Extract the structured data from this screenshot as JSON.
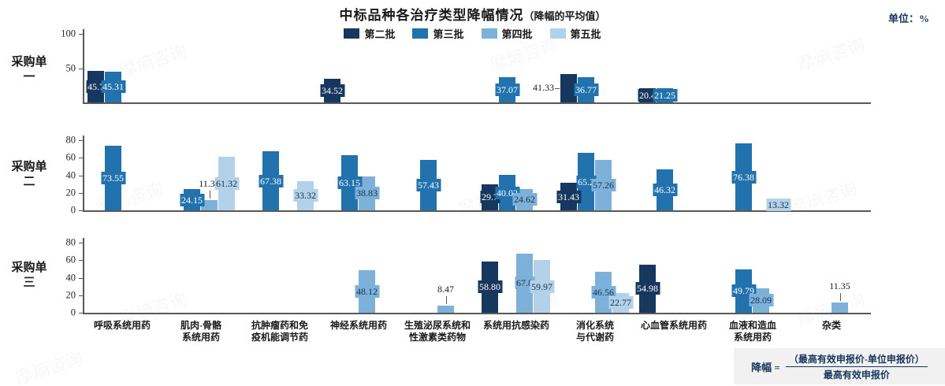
{
  "watermark": "摩熵咨询",
  "chart_data": {
    "type": "bar",
    "title": "中标品种各治疗类型降幅情况",
    "title_note": "（降幅的平均值）",
    "unit_note": "单位：%",
    "legend": [
      "第二批",
      "第三批",
      "第四批",
      "第五批"
    ],
    "colors": [
      "#17375E",
      "#2272AE",
      "#7EB1D9",
      "#B3D2EA"
    ],
    "grid": false,
    "legend_position": "top-center",
    "categories": [
      "呼吸系统用药",
      "肌肉-骨骼系统用药",
      "抗肿瘤药和免疫机能调节药",
      "神经系统用药",
      "生殖泌尿系统和性激素类药物",
      "系统用抗感染药",
      "消化系统与代谢药",
      "心血管系统用药",
      "血液和造血系统用药",
      "杂类"
    ],
    "category_lines": [
      "呼吸系统用药",
      "肌肉-骨骼\n系统用药",
      "抗肿瘤药和免\n疫机能调节药",
      "神经系统用药",
      "生殖泌尿系统和\n性激素类药物",
      "系统用抗感染药",
      "消化系统\n与代谢药",
      "心血管系统用药",
      "血液和造血\n系统用药",
      "杂类"
    ],
    "panels": [
      {
        "label": "采购单一",
        "label_lines": "采购单\n一",
        "ymax": 100,
        "yticks": [
          100,
          50
        ],
        "bars": [
          {
            "c": 0,
            "b": 0,
            "v": 45.7,
            "t": "45.7"
          },
          {
            "c": 0,
            "b": 1,
            "v": 45.31,
            "t": "45.31"
          },
          {
            "c": 3,
            "b": 0,
            "v": 34.52,
            "t": "34.52"
          },
          {
            "c": 5,
            "b": 1,
            "v": 37.07,
            "t": "37.07"
          },
          {
            "c": 6,
            "b": 0,
            "v": 41.33,
            "t": "41.33",
            "out": "left"
          },
          {
            "c": 6,
            "b": 1,
            "v": 36.77,
            "t": "36.77"
          },
          {
            "c": 7,
            "b": 0,
            "v": 20.4,
            "t": "20.4"
          },
          {
            "c": 7,
            "b": 1,
            "v": 21.25,
            "t": "21.25"
          }
        ]
      },
      {
        "label": "采购单二",
        "label_lines": "采购单\n二",
        "ymax": 80,
        "yticks": [
          80,
          60,
          40,
          20,
          0
        ],
        "bars": [
          {
            "c": 0,
            "b": 1,
            "v": 73.55,
            "t": "73.55"
          },
          {
            "c": 1,
            "b": 1,
            "v": 24.15,
            "t": "24.15"
          },
          {
            "c": 1,
            "b": 2,
            "v": 11.35,
            "t": "11.35",
            "out": "top"
          },
          {
            "c": 1,
            "b": 3,
            "v": 61.32,
            "t": "61.32"
          },
          {
            "c": 2,
            "b": 1,
            "v": 67.38,
            "t": "67.38"
          },
          {
            "c": 2,
            "b": 3,
            "v": 33.32,
            "t": "33.32"
          },
          {
            "c": 3,
            "b": 1,
            "v": 63.15,
            "t": "63.15"
          },
          {
            "c": 3,
            "b": 2,
            "v": 38.83,
            "t": "38.83"
          },
          {
            "c": 4,
            "b": 1,
            "v": 57.43,
            "t": "57.43"
          },
          {
            "c": 5,
            "b": 0,
            "v": 29.7,
            "t": "29.7"
          },
          {
            "c": 5,
            "b": 1,
            "v": 40.02,
            "t": "40.02"
          },
          {
            "c": 5,
            "b": 2,
            "v": 24.62,
            "t": "24.62"
          },
          {
            "c": 6,
            "b": 0,
            "v": 31.43,
            "t": "31.43"
          },
          {
            "c": 6,
            "b": 1,
            "v": 65.2,
            "t": "65.2"
          },
          {
            "c": 6,
            "b": 2,
            "v": 57.26,
            "t": "57.26"
          },
          {
            "c": 7,
            "b": 1,
            "v": 46.32,
            "t": "46.32"
          },
          {
            "c": 8,
            "b": 1,
            "v": 76.38,
            "t": "76.38"
          },
          {
            "c": 8,
            "b": 3,
            "v": 13.32,
            "t": "13.32"
          }
        ]
      },
      {
        "label": "采购单三",
        "label_lines": "采购单\n三",
        "ymax": 80,
        "yticks": [
          80,
          60,
          40,
          20,
          0
        ],
        "bars": [
          {
            "c": 3,
            "b": 2,
            "v": 48.12,
            "t": "48.12"
          },
          {
            "c": 4,
            "b": 2,
            "v": 8.47,
            "t": "8.47",
            "out": "top"
          },
          {
            "c": 5,
            "b": 0,
            "v": 58.8,
            "t": "58.80"
          },
          {
            "c": 5,
            "b": 2,
            "v": 67.8,
            "t": "67.8"
          },
          {
            "c": 5,
            "b": 3,
            "v": 59.97,
            "t": "59.97"
          },
          {
            "c": 6,
            "b": 2,
            "v": 46.56,
            "t": "46.56"
          },
          {
            "c": 6,
            "b": 3,
            "v": 22.77,
            "t": "22.77"
          },
          {
            "c": 7,
            "b": 0,
            "v": 54.98,
            "t": "54.98"
          },
          {
            "c": 8,
            "b": 1,
            "v": 49.79,
            "t": "49.79"
          },
          {
            "c": 8,
            "b": 2,
            "v": 28.09,
            "t": "28.09"
          },
          {
            "c": 9,
            "b": 2,
            "v": 11.35,
            "t": "11.35",
            "out": "top"
          }
        ]
      }
    ],
    "formula": {
      "prefix": "降幅 =",
      "numerator": "（最高有效申报价-单位申报价）",
      "denominator": "最高有效申报价"
    }
  }
}
